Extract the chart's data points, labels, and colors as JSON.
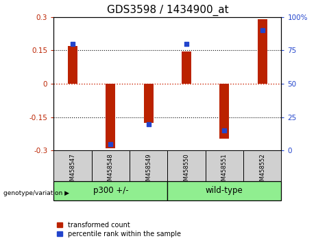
{
  "title": "GDS3598 / 1434900_at",
  "samples": [
    "GSM458547",
    "GSM458548",
    "GSM458549",
    "GSM458550",
    "GSM458551",
    "GSM458552"
  ],
  "red_values": [
    0.17,
    -0.29,
    -0.175,
    0.145,
    -0.245,
    0.29
  ],
  "blue_percentiles": [
    80,
    5,
    20,
    80,
    15,
    90
  ],
  "ylim_left": [
    -0.3,
    0.3
  ],
  "ylim_right": [
    0,
    100
  ],
  "yticks_left": [
    -0.3,
    -0.15,
    0,
    0.15,
    0.3
  ],
  "yticks_right": [
    0,
    25,
    50,
    75,
    100
  ],
  "ytick_labels_left": [
    "-0.3",
    "-0.15",
    "0",
    "0.15",
    "0.3"
  ],
  "ytick_labels_right": [
    "0",
    "25",
    "50",
    "75",
    "100%"
  ],
  "group_label": "genotype/variation",
  "group_info": [
    {
      "label": "p300 +/-",
      "start": 0,
      "end": 2
    },
    {
      "label": "wild-type",
      "start": 3,
      "end": 5
    }
  ],
  "red_color": "#bb2200",
  "blue_color": "#2244cc",
  "bar_width": 0.25,
  "legend_labels": [
    "transformed count",
    "percentile rank within the sample"
  ],
  "hline_color": "#cc2200",
  "dotted_color": "black",
  "bg_color": "white",
  "plot_bg": "white",
  "sample_box_color": "#d0d0d0",
  "group_color": "#90ee90",
  "title_fontsize": 11
}
